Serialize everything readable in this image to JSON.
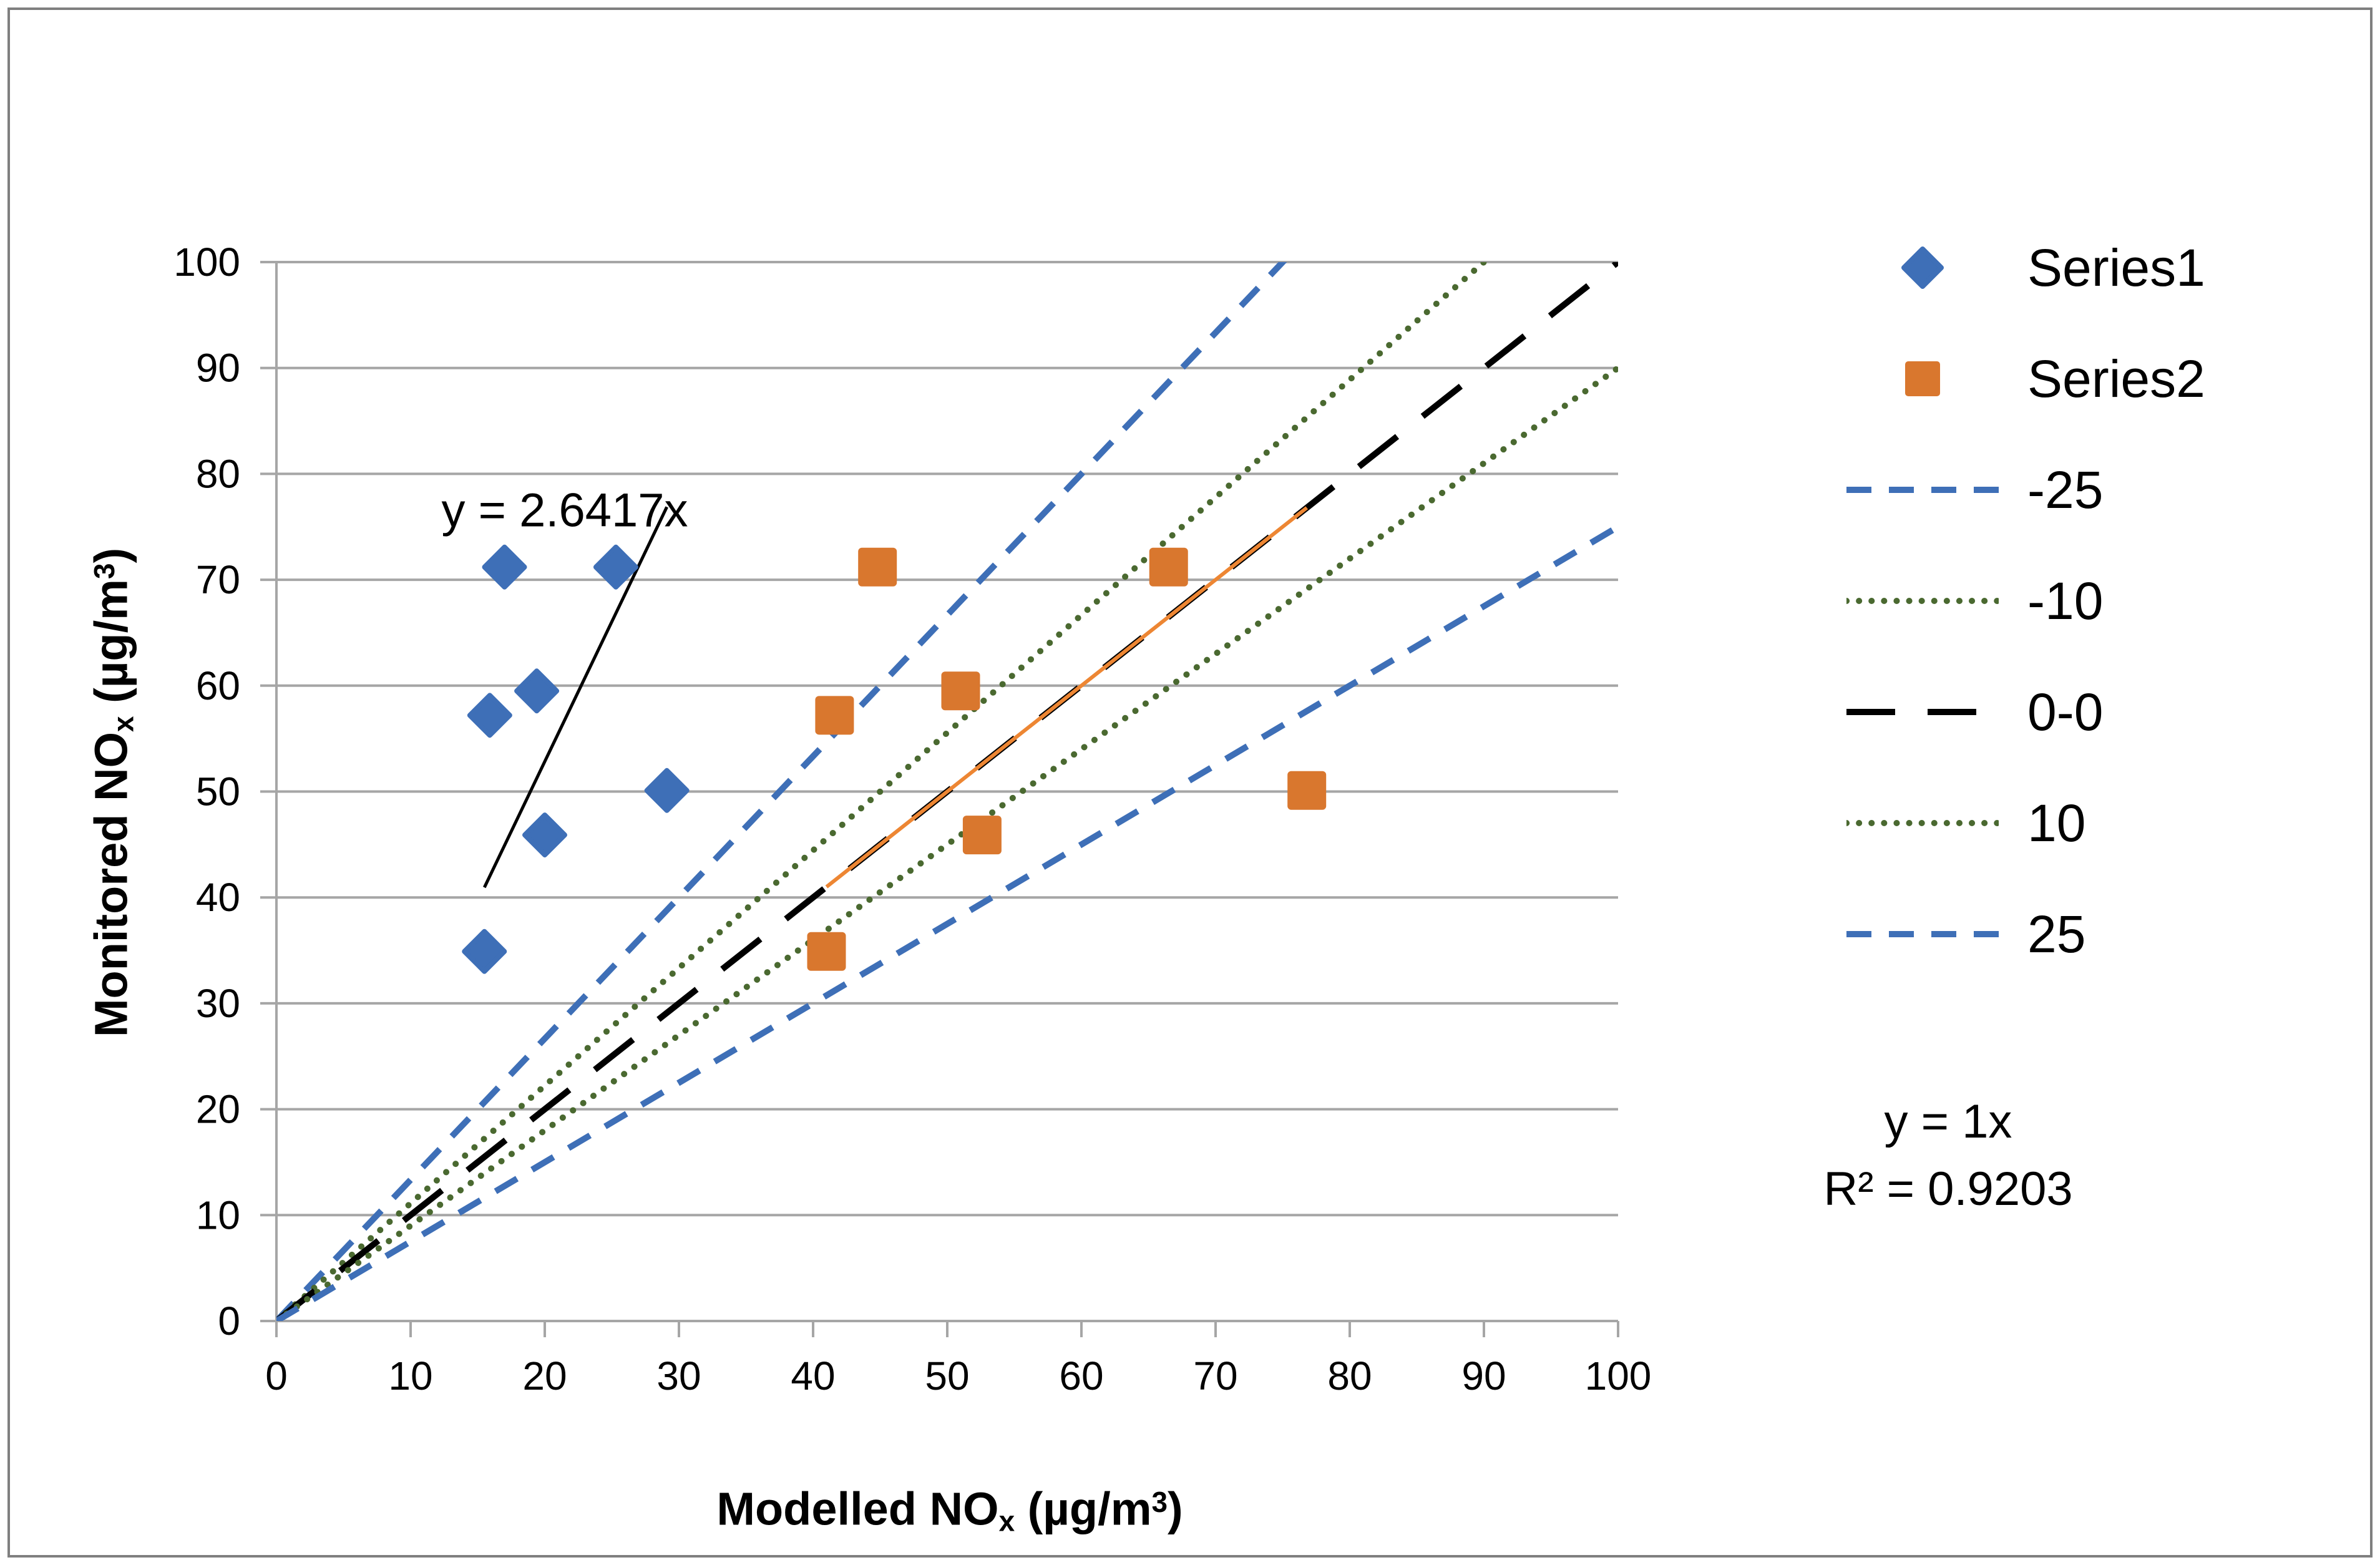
{
  "frame": {
    "border_color": "#7F7F7F",
    "background": "#FFFFFF"
  },
  "chart_data": {
    "type": "scatter",
    "title": "",
    "grid": "horizontal",
    "axis_color": "#A6A6A6",
    "x_axis": {
      "title_pre": "Modelled NO",
      "title_sub": "x",
      "title_mid": " (µg/m",
      "title_sup": "3",
      "title_post": ")",
      "min": 0,
      "max": 100,
      "tick_step": 10,
      "ticks": [
        0,
        10,
        20,
        30,
        40,
        50,
        60,
        70,
        80,
        90,
        100
      ]
    },
    "y_axis": {
      "title_pre": "Monitored NO",
      "title_sub": "x",
      "title_mid": " (µg/m",
      "title_sup": "3",
      "title_post": ")",
      "min": 0,
      "max": 100,
      "tick_step": 10,
      "ticks": [
        0,
        10,
        20,
        30,
        40,
        50,
        60,
        70,
        80,
        90,
        100
      ]
    },
    "series": [
      {
        "name": "Series1",
        "marker": "diamond",
        "color": "#3E6FB7",
        "points": [
          [
            17.0,
            71.2
          ],
          [
            25.3,
            71.2
          ],
          [
            19.4,
            59.5
          ],
          [
            15.9,
            57.2
          ],
          [
            29.1,
            50.1
          ],
          [
            20.0,
            45.9
          ],
          [
            15.5,
            34.9
          ]
        ]
      },
      {
        "name": "Series2",
        "marker": "square",
        "color": "#D9772E",
        "points": [
          [
            44.8,
            71.2
          ],
          [
            66.5,
            71.2
          ],
          [
            51.0,
            59.5
          ],
          [
            41.6,
            57.2
          ],
          [
            76.8,
            50.1
          ],
          [
            52.6,
            45.9
          ],
          [
            41.0,
            34.9
          ]
        ]
      }
    ],
    "reference_lines": [
      {
        "label": "-25",
        "slope": 1.3333,
        "color": "#3E6FB7",
        "dash": "dashed"
      },
      {
        "label": "-10",
        "slope": 1.1111,
        "color": "#4A6930",
        "dash": "dotted"
      },
      {
        "label": "0-0",
        "slope": 1.0,
        "color": "#000000",
        "dash": "longdash"
      },
      {
        "label": "10",
        "slope": 0.9,
        "color": "#4A6930",
        "dash": "dotted"
      },
      {
        "label": "25",
        "slope": 0.75,
        "color": "#3E6FB7",
        "dash": "dashed"
      }
    ],
    "trendlines": [
      {
        "series": "Series1",
        "equation": "y = 2.6417x",
        "slope": 2.6417,
        "x_start": 15.5,
        "x_end": 29.1,
        "color": "#000000",
        "width": 5
      },
      {
        "series": "Series2",
        "equation": "y = 1x",
        "r_squared": "R² = 0.9203",
        "slope": 1.0,
        "x_start": 41.0,
        "x_end": 76.8,
        "color": "#ED8633",
        "width": 6
      }
    ],
    "legend": [
      {
        "label": "Series1",
        "swatch": "diamond",
        "color": "#3E6FB7"
      },
      {
        "label": "Series2",
        "swatch": "square",
        "color": "#D9772E"
      },
      {
        "label": "-25",
        "swatch": "dashed",
        "color": "#3E6FB7"
      },
      {
        "label": "-10",
        "swatch": "dotted",
        "color": "#4A6930"
      },
      {
        "label": "0-0",
        "swatch": "longdash",
        "color": "#000000"
      },
      {
        "label": "10",
        "swatch": "dotted",
        "color": "#4A6930"
      },
      {
        "label": "25",
        "swatch": "dashed",
        "color": "#3E6FB7"
      }
    ]
  }
}
